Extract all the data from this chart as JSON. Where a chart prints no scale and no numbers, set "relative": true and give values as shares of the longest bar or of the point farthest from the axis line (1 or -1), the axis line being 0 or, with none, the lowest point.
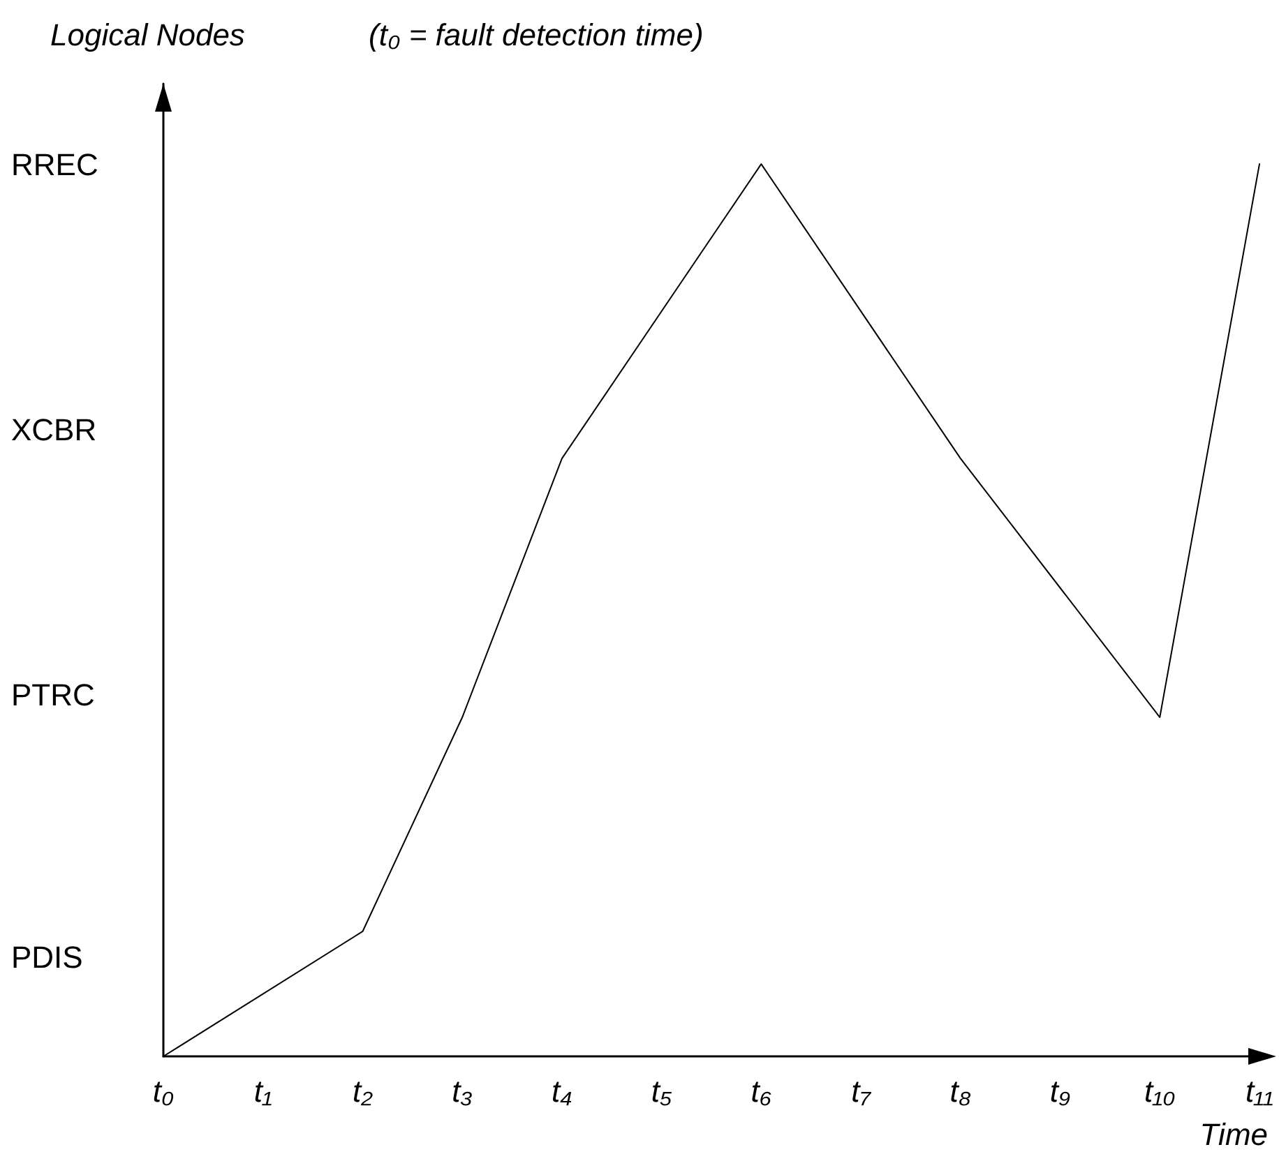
{
  "chart_data": {
    "type": "line",
    "relative": true,
    "ylabel": "Logical Nodes",
    "xlabel": "Time",
    "annotations": [
      "(t₀ = fault detection time)",
      "PDIS",
      "PTRC",
      "XCBR",
      "RREC"
    ],
    "categories": [
      "t₀",
      "t₁",
      "t₂",
      "t₃",
      "t₄",
      "t₅",
      "t₆",
      "t₇",
      "t₈",
      "t₉",
      "t₁₀",
      "t₁₁"
    ],
    "series": [
      {
        "color": "#000000",
        "values": [
          0,
          null,
          0.14,
          0.38,
          0.67,
          null,
          1,
          null,
          0.67,
          null,
          0.38,
          1
        ]
      }
    ],
    "marker": "none",
    "line_style": "solid"
  }
}
